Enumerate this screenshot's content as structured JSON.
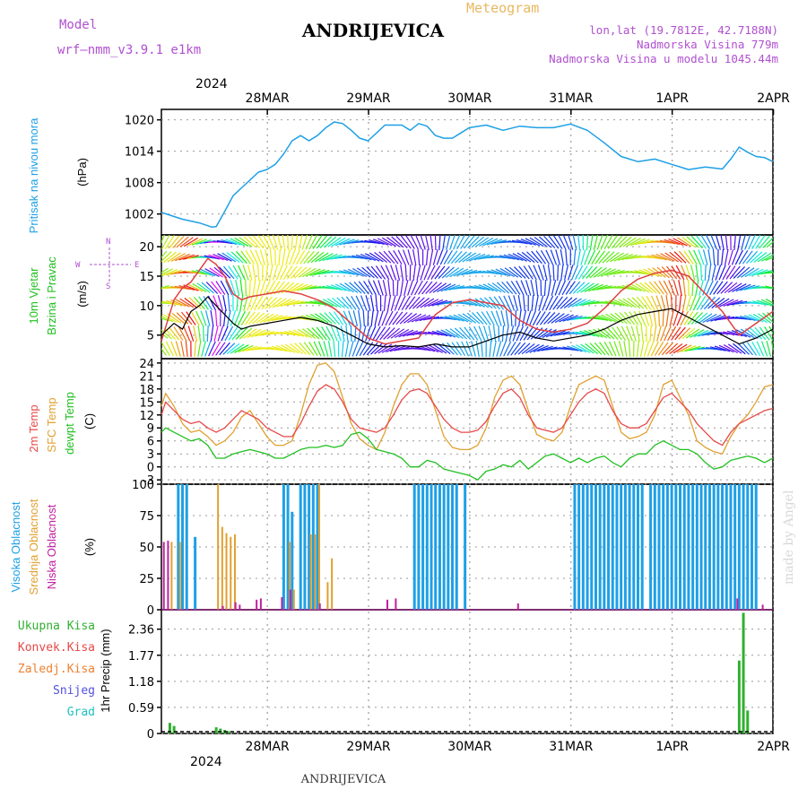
{
  "header": {
    "title": "ANDRIJEVICA",
    "subtitle": "Meteogram",
    "model_label": "Model",
    "model_name": "wrf–nmm_v3.9.1  e1km",
    "lonlat": "lon,lat (19.7812E, 42.7188N)",
    "elevation": "Nadmorska Visina 779m",
    "model_elevation": "Nadmorska Visina u modelu 1045.44m"
  },
  "footer": {
    "station": "ANDRIJEVICA",
    "watermark": "made by Angel"
  },
  "axis": {
    "year_top": "2024",
    "year_bottom": "2024",
    "days": [
      "28MAR",
      "29MAR",
      "30MAR",
      "31MAR",
      "1APR",
      "2APR"
    ]
  },
  "colors": {
    "pressure": "#1ea0e6",
    "wind_speed": "#000000",
    "wind_gust": "#e04040",
    "temp2m": "#e84848",
    "sfc_temp": "#e0a030",
    "dewpoint": "#20c020",
    "high_cloud": "#1ea0e6",
    "mid_cloud": "#e0a030",
    "low_cloud": "#c020a0",
    "total_precip": "#30b030"
  },
  "panels": {
    "pressure": {
      "label1": "Pritisak na nivou mora",
      "unit": "(hPa)",
      "ticks": [
        "1002",
        "1008",
        "1014",
        "1020"
      ]
    },
    "wind": {
      "label1": "10m Vjetar",
      "label2": "Brzina i Pravac",
      "unit": "(m/s)",
      "ticks": [
        "5",
        "10",
        "15",
        "20"
      ],
      "compass_n": "N",
      "compass_s": "S",
      "compass_e": "E",
      "compass_w": "W"
    },
    "temp": {
      "label1": "2m Temp",
      "label2": "SFC Temp",
      "label3": "dewpt Temp",
      "unit": "(C)",
      "ticks": [
        "-3",
        "0",
        "3",
        "6",
        "9",
        "12",
        "15",
        "18",
        "21",
        "24"
      ]
    },
    "cloud": {
      "label1": "Visoka Oblacnost",
      "label2": "Srednja Oblacnost",
      "label3": "Niska Oblacnost",
      "unit": "(%)",
      "ticks": [
        "0",
        "25",
        "50",
        "75",
        "100"
      ]
    },
    "precip": {
      "legend": [
        "Ukupna Kisa",
        "Konvek.Kisa",
        "Zaledj.Kisa",
        "Snijeg",
        "Grad"
      ],
      "legend_colors": [
        "#30b030",
        "#e84848",
        "#f08030",
        "#5050e0",
        "#20c0c0"
      ],
      "unit": "1hr Precip (mm)",
      "ticks": [
        "0",
        "0.59",
        "1.18",
        "1.77",
        "2.36"
      ]
    }
  },
  "chart_data": {
    "type": "line",
    "x_unit": "hour since 28MAR 00 UTC",
    "x_range": [
      -13,
      132
    ],
    "pressure": {
      "ylim": [
        998,
        1022
      ],
      "x": [
        -13,
        -8,
        -4,
        -1,
        0,
        2,
        4,
        6,
        8,
        10,
        12,
        14,
        16,
        18,
        20,
        22,
        24,
        26,
        28,
        30,
        32,
        34,
        36,
        38,
        40,
        42,
        44,
        46,
        48,
        50,
        52,
        54,
        56,
        58,
        60,
        64,
        68,
        72,
        76,
        80,
        84,
        88,
        92,
        96,
        100,
        104,
        108,
        112,
        116,
        120,
        122,
        124,
        126,
        128,
        130,
        132
      ],
      "values": [
        1002.3,
        1001.0,
        1000.3,
        999.5,
        999.6,
        1002.5,
        1005.5,
        1007.0,
        1008.5,
        1010.0,
        1010.5,
        1011.5,
        1013.5,
        1016.0,
        1017.0,
        1016.0,
        1017.0,
        1018.5,
        1019.6,
        1019.3,
        1018.0,
        1016.5,
        1016.0,
        1017.5,
        1019.0,
        1019.0,
        1019.0,
        1018.0,
        1019.3,
        1018.8,
        1017.0,
        1016.5,
        1016.5,
        1017.5,
        1018.5,
        1019.0,
        1018.0,
        1018.8,
        1018.5,
        1018.5,
        1019.2,
        1018.0,
        1015.6,
        1013.0,
        1012.0,
        1012.5,
        1011.5,
        1010.5,
        1011.0,
        1010.6,
        1012.5,
        1014.8,
        1013.8,
        1013.0,
        1012.8,
        1012.0
      ]
    },
    "wind": {
      "ylim": [
        1,
        22
      ],
      "x": [
        -13,
        -10,
        -8,
        -6,
        -4,
        -2,
        0,
        2,
        4,
        6,
        8,
        12,
        16,
        20,
        24,
        28,
        32,
        36,
        40,
        44,
        48,
        52,
        56,
        60,
        64,
        68,
        72,
        76,
        80,
        84,
        88,
        92,
        96,
        100,
        104,
        108,
        112,
        116,
        120,
        124,
        128,
        132
      ],
      "speed": [
        5.0,
        7.0,
        6.0,
        9.0,
        10.0,
        11.5,
        10.0,
        8.5,
        7.0,
        6.0,
        6.5,
        7.0,
        7.5,
        8.0,
        7.5,
        6.5,
        5.0,
        3.5,
        3.0,
        3.2,
        3.0,
        3.5,
        3.0,
        3.0,
        4.0,
        5.0,
        5.5,
        4.5,
        4.0,
        4.5,
        5.0,
        6.0,
        7.5,
        8.5,
        9.0,
        9.5,
        8.0,
        6.5,
        5.0,
        3.5,
        4.5,
        6.0
      ],
      "gust": [
        4.0,
        11.0,
        13.0,
        14.0,
        16.0,
        18.0,
        17.0,
        15.0,
        12.0,
        11.0,
        11.5,
        12.0,
        12.5,
        12.0,
        11.0,
        9.5,
        7.0,
        4.5,
        3.5,
        4.0,
        4.5,
        8.5,
        10.5,
        11.0,
        10.5,
        10.0,
        7.5,
        6.0,
        5.5,
        6.0,
        7.0,
        9.5,
        12.5,
        14.5,
        15.5,
        16.0,
        15.0,
        12.0,
        9.0,
        5.0,
        7.0,
        9.0
      ],
      "speed_label": "Brzina",
      "gust_label": "Pravac"
    },
    "temp": {
      "ylim": [
        -4,
        25
      ],
      "x": [
        -13,
        -12,
        -10,
        -8,
        -6,
        -4,
        -2,
        0,
        2,
        4,
        6,
        8,
        10,
        12,
        14,
        16,
        18,
        20,
        22,
        24,
        26,
        28,
        30,
        32,
        34,
        36,
        38,
        40,
        42,
        44,
        46,
        48,
        50,
        52,
        54,
        56,
        58,
        60,
        62,
        64,
        66,
        68,
        70,
        72,
        74,
        76,
        78,
        80,
        82,
        84,
        86,
        88,
        90,
        92,
        94,
        96,
        98,
        100,
        102,
        104,
        106,
        108,
        110,
        112,
        114,
        116,
        118,
        120,
        122,
        124,
        126,
        128,
        130,
        132
      ],
      "temp2m": [
        12,
        15,
        13,
        11,
        10,
        10.5,
        9,
        8,
        9,
        11,
        13,
        12,
        11,
        9,
        8,
        7,
        7,
        10,
        14,
        17.5,
        19,
        18,
        15,
        11,
        9,
        8.5,
        8,
        9,
        12,
        15.5,
        17.5,
        18,
        17,
        14,
        11,
        9,
        8,
        8,
        8.5,
        10.5,
        14,
        17,
        18,
        16,
        12,
        9,
        8.5,
        8,
        9,
        12,
        15,
        17,
        18,
        17,
        13,
        10,
        9,
        9,
        10,
        13,
        16,
        17,
        15,
        13,
        10,
        8,
        6,
        5,
        8,
        10,
        11,
        12,
        13,
        13.5
      ],
      "sfc": [
        14,
        17,
        14,
        10,
        8,
        8.5,
        7,
        5,
        6,
        8,
        11.5,
        13,
        10,
        7,
        5,
        5,
        6,
        12,
        19,
        23.5,
        24,
        22,
        16,
        10,
        6.5,
        5,
        4,
        8,
        14,
        19,
        21.5,
        21.5,
        19,
        13,
        7,
        4.5,
        4,
        4,
        5,
        9,
        16,
        20,
        21,
        19,
        13,
        7.5,
        6.5,
        6,
        8,
        14,
        19,
        20,
        21,
        20,
        14,
        8,
        6.5,
        7,
        8,
        12,
        19,
        20,
        16,
        12,
        6,
        4.5,
        3.5,
        3,
        7,
        10,
        12,
        15,
        18.5,
        19
      ],
      "dew": [
        8,
        9,
        8,
        7,
        6,
        6.5,
        5,
        2,
        2,
        3,
        3.5,
        4,
        3.5,
        3,
        2,
        2,
        3,
        4,
        4.5,
        4.5,
        5,
        4.5,
        5,
        7.5,
        8,
        6.5,
        4,
        3.5,
        3,
        2,
        0,
        0,
        1.5,
        1,
        -0.5,
        -1,
        -1.5,
        -2,
        -3,
        -1,
        -0.5,
        0.5,
        0,
        1.5,
        -0.5,
        1,
        2.5,
        3,
        2,
        1,
        2,
        1,
        2,
        2.5,
        1,
        0,
        2,
        3,
        3,
        5,
        6,
        5,
        4,
        4,
        3,
        1,
        -0.5,
        0,
        1.5,
        2,
        2.5,
        2,
        1,
        2
      ]
    },
    "cloud": {
      "ylim": [
        0,
        100
      ],
      "high_x": [
        -9,
        -8,
        -7,
        -5,
        16,
        17,
        18,
        20,
        21,
        22,
        23,
        24,
        47,
        48,
        49,
        50,
        51,
        52,
        53,
        54,
        55,
        56,
        57,
        59,
        85,
        86,
        87,
        88,
        89,
        90,
        91,
        92,
        93,
        94,
        95,
        96,
        97,
        98,
        99,
        100,
        101,
        103,
        104,
        105,
        106,
        107,
        108,
        109,
        110,
        111,
        112,
        113,
        114,
        115,
        116,
        117,
        118,
        119,
        120,
        121,
        122,
        123,
        124,
        125,
        126,
        127,
        128
      ],
      "high_v": [
        100,
        100,
        100,
        58,
        100,
        100,
        78,
        100,
        100,
        100,
        100,
        100,
        100,
        100,
        100,
        100,
        100,
        100,
        100,
        100,
        100,
        100,
        100,
        100,
        100,
        100,
        100,
        100,
        100,
        100,
        100,
        100,
        100,
        100,
        100,
        100,
        100,
        100,
        100,
        100,
        100,
        100,
        100,
        100,
        100,
        100,
        100,
        100,
        100,
        100,
        100,
        100,
        100,
        100,
        100,
        100,
        100,
        100,
        100,
        100,
        100,
        100,
        100,
        100,
        100,
        100,
        100
      ],
      "mid_x": [
        -11,
        -9,
        0,
        1,
        2,
        3,
        4,
        17,
        18,
        22,
        23,
        24,
        26,
        27
      ],
      "mid_v": [
        54,
        54,
        100,
        66,
        61,
        58,
        60,
        54,
        16,
        60,
        60,
        100,
        22,
        41
      ],
      "low_x": [
        -12,
        -11,
        2,
        5,
        6,
        10,
        11,
        16,
        18,
        25,
        41,
        43,
        72,
        124,
        130
      ],
      "low_v": [
        54,
        55,
        3,
        6,
        4,
        8,
        9,
        10,
        16,
        5,
        8,
        9,
        5,
        9,
        4
      ]
    },
    "precip": {
      "ylim": [
        0,
        2.8
      ],
      "x": [
        -11,
        -10,
        0,
        1,
        2,
        3,
        124,
        125,
        126
      ],
      "values": [
        0.24,
        0.17,
        0.14,
        0.11,
        0.08,
        0.05,
        1.65,
        2.73,
        0.52
      ]
    }
  }
}
